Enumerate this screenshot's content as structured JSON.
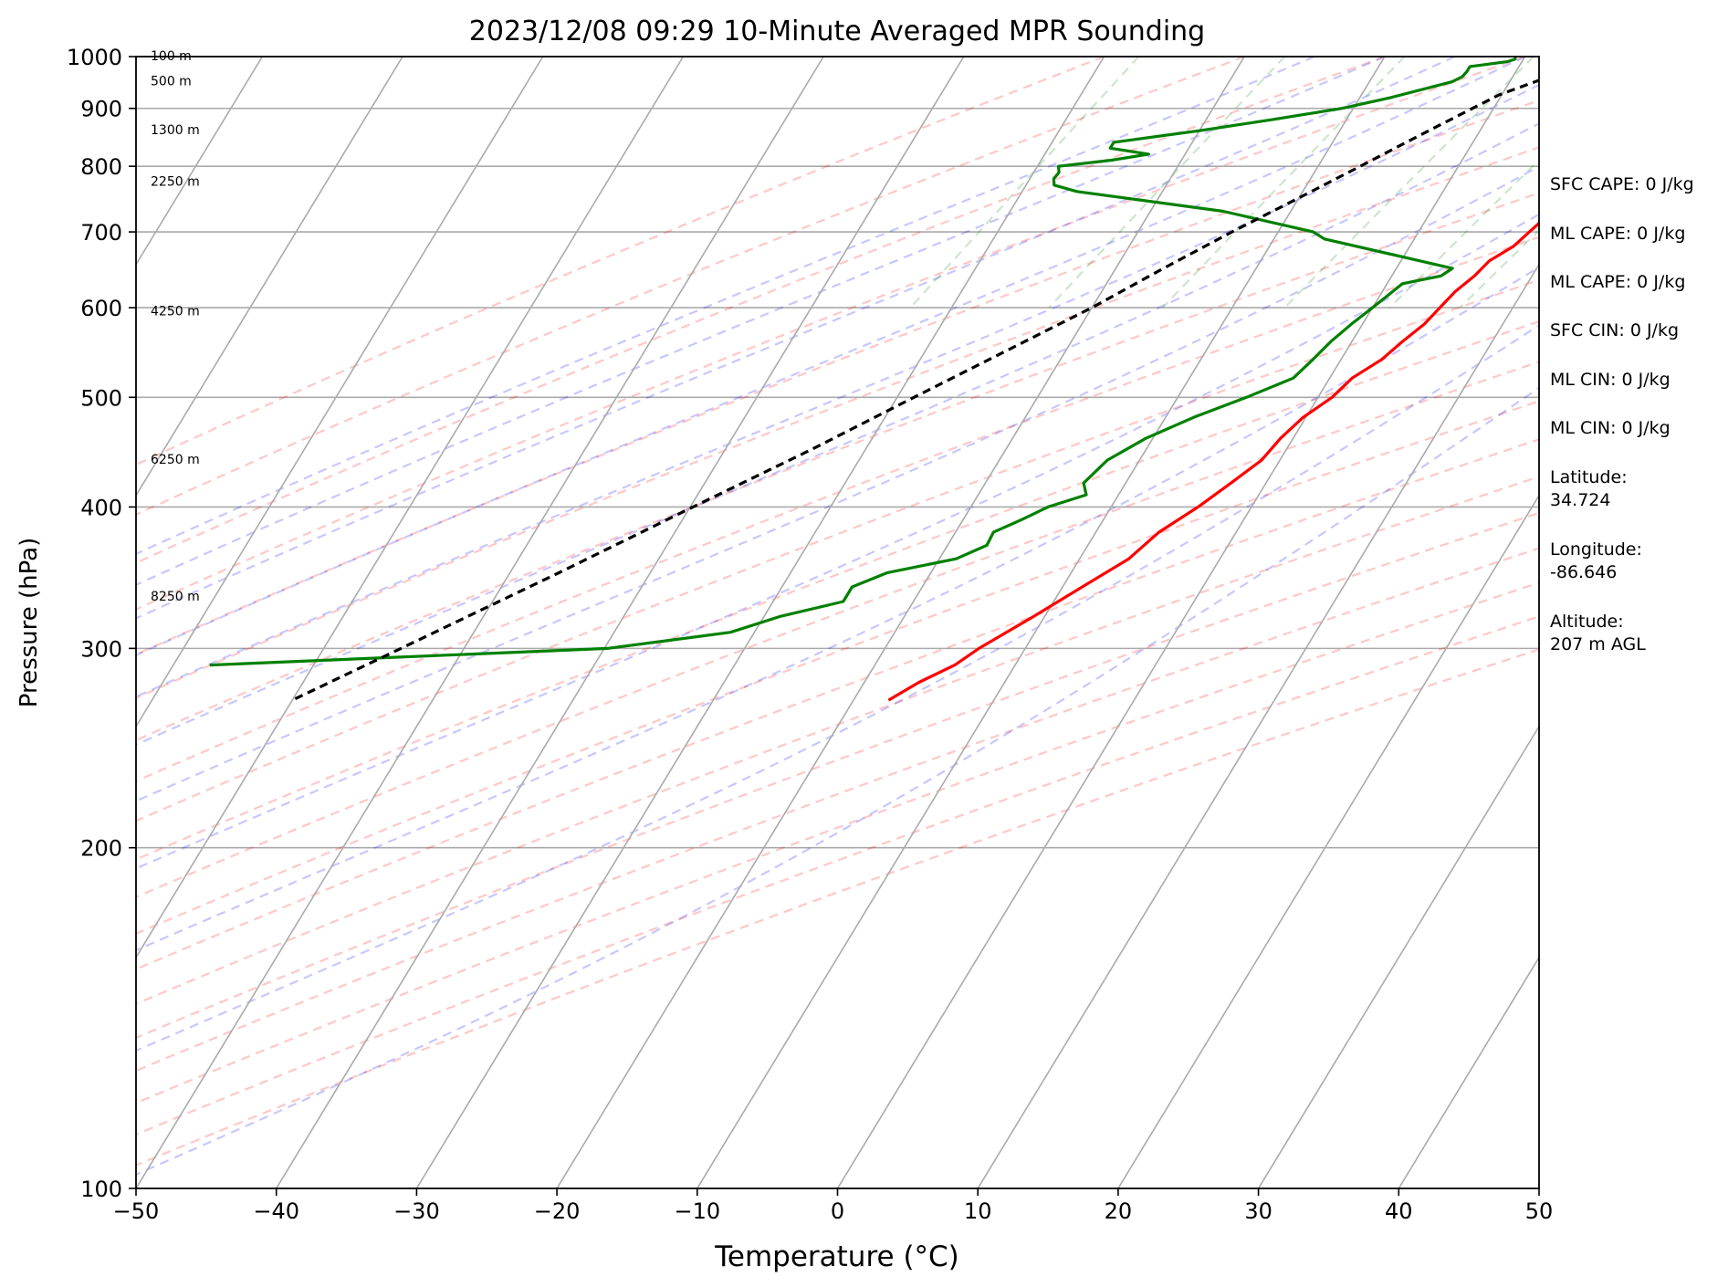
{
  "chart_data": {
    "type": "skew-t",
    "title": "2023/12/08 09:29 10-Minute Averaged MPR Sounding",
    "xlabel": "Temperature (°C)",
    "ylabel": "Pressure (hPa)",
    "xlim": [
      -50,
      50
    ],
    "ylim": [
      1000,
      100
    ],
    "yscale": "log",
    "x_ticks": [
      -50,
      -40,
      -30,
      -20,
      -10,
      0,
      10,
      20,
      30,
      40,
      50
    ],
    "x_tick_labels": [
      "−50",
      "−40",
      "−30",
      "−20",
      "−10",
      "0",
      "10",
      "20",
      "30",
      "40",
      "50"
    ],
    "y_ticks": [
      1000,
      900,
      800,
      700,
      600,
      500,
      400,
      300,
      200,
      100
    ],
    "y_tick_labels": [
      "1000",
      "900",
      "800",
      "700",
      "600",
      "500",
      "400",
      "300",
      "200",
      "100"
    ],
    "height_labels": [
      {
        "p": 1000,
        "text": "100 m"
      },
      {
        "p": 950,
        "text": "500 m"
      },
      {
        "p": 860,
        "text": "1300 m"
      },
      {
        "p": 775,
        "text": "2250 m"
      },
      {
        "p": 595,
        "text": "4250 m"
      },
      {
        "p": 440,
        "text": "6250 m"
      },
      {
        "p": 333,
        "text": "8250 m"
      }
    ],
    "series": [
      {
        "key": "temperature",
        "color": "#ff0000",
        "points": [
          [
            1000,
            7.5
          ],
          [
            990,
            8.1
          ],
          [
            980,
            8.3
          ],
          [
            970,
            7.4
          ],
          [
            960,
            6.5
          ],
          [
            950,
            6.4
          ],
          [
            940,
            6.9
          ],
          [
            920,
            7.2
          ],
          [
            910,
            7.7
          ],
          [
            900,
            7.8
          ],
          [
            880,
            8.5
          ],
          [
            860,
            9.5
          ],
          [
            840,
            9.8
          ],
          [
            820,
            10.1
          ],
          [
            800,
            10.0
          ],
          [
            780,
            10.0
          ],
          [
            760,
            9.3
          ],
          [
            740,
            9.0
          ],
          [
            720,
            8.4
          ],
          [
            700,
            7.9
          ],
          [
            680,
            7.4
          ],
          [
            660,
            6.3
          ],
          [
            640,
            5.9
          ],
          [
            620,
            5.2
          ],
          [
            600,
            4.8
          ],
          [
            580,
            4.4
          ],
          [
            560,
            3.6
          ],
          [
            540,
            2.9
          ],
          [
            520,
            1.6
          ],
          [
            500,
            1.0
          ],
          [
            480,
            -0.2
          ],
          [
            460,
            -0.9
          ],
          [
            440,
            -1.3
          ],
          [
            420,
            -2.5
          ],
          [
            400,
            -3.8
          ],
          [
            380,
            -5.5
          ],
          [
            360,
            -6.5
          ],
          [
            340,
            -8.6
          ],
          [
            320,
            -10.8
          ],
          [
            300,
            -13.3
          ],
          [
            290,
            -14.3
          ],
          [
            280,
            -16.1
          ],
          [
            270,
            -17.5
          ]
        ]
      },
      {
        "key": "dewpoint",
        "color": "#008000",
        "points": [
          [
            1000,
            -0.7
          ],
          [
            995,
            -0.6
          ],
          [
            990,
            -1.0
          ],
          [
            980,
            -3.5
          ],
          [
            970,
            -3.5
          ],
          [
            960,
            -3.6
          ],
          [
            950,
            -4.1
          ],
          [
            920,
            -7.8
          ],
          [
            900,
            -10.8
          ],
          [
            880,
            -15.2
          ],
          [
            860,
            -20.0
          ],
          [
            840,
            -25.6
          ],
          [
            830,
            -25.6
          ],
          [
            820,
            -22.6
          ],
          [
            810,
            -25.0
          ],
          [
            800,
            -28.5
          ],
          [
            790,
            -28.2
          ],
          [
            780,
            -28.3
          ],
          [
            770,
            -28.0
          ],
          [
            760,
            -26.1
          ],
          [
            730,
            -14.8
          ],
          [
            700,
            -7.5
          ],
          [
            690,
            -6.4
          ],
          [
            650,
            4.0
          ],
          [
            640,
            3.5
          ],
          [
            630,
            1.1
          ],
          [
            600,
            0.0
          ],
          [
            580,
            -0.8
          ],
          [
            560,
            -1.5
          ],
          [
            540,
            -2.0
          ],
          [
            520,
            -2.6
          ],
          [
            500,
            -5.1
          ],
          [
            480,
            -8.0
          ],
          [
            460,
            -10.5
          ],
          [
            440,
            -12.3
          ],
          [
            420,
            -13.0
          ],
          [
            410,
            -12.3
          ],
          [
            400,
            -14.5
          ],
          [
            390,
            -15.8
          ],
          [
            380,
            -17.3
          ],
          [
            370,
            -17.2
          ],
          [
            360,
            -18.8
          ],
          [
            350,
            -23.1
          ],
          [
            340,
            -25.0
          ],
          [
            330,
            -25.0
          ],
          [
            320,
            -28.9
          ],
          [
            310,
            -31.7
          ],
          [
            300,
            -39.8
          ],
          [
            290,
            -67.4
          ]
        ]
      },
      {
        "key": "parcel",
        "color": "#000000",
        "points": [
          [
            1000,
            5.7
          ],
          [
            975,
            3.8
          ],
          [
            950,
            1.8
          ],
          [
            925,
            -0.2
          ],
          [
            900,
            -1.5
          ],
          [
            850,
            -4.2
          ],
          [
            800,
            -7.0
          ],
          [
            750,
            -10.0
          ],
          [
            700,
            -13.3
          ],
          [
            650,
            -16.6
          ],
          [
            600,
            -20.0
          ],
          [
            550,
            -24.2
          ],
          [
            500,
            -28.8
          ],
          [
            450,
            -33.8
          ],
          [
            400,
            -39.8
          ],
          [
            350,
            -46.5
          ],
          [
            300,
            -54.5
          ],
          [
            270,
            -60.0
          ]
        ]
      }
    ],
    "dry_adiabats_theta_C": [
      -30,
      -20,
      -10,
      0,
      10,
      20,
      30,
      40,
      50,
      60,
      70,
      80,
      90,
      100,
      110,
      120,
      130,
      140,
      150
    ],
    "moist_adiabats_thetaw_C": [
      -15,
      -10,
      -5,
      0,
      5,
      10,
      15,
      20,
      25,
      30,
      35
    ],
    "mixing_ratio_lines_gkg": [
      0.4,
      1,
      2,
      4,
      7,
      10,
      16,
      24,
      32
    ]
  },
  "stats": [
    {
      "key": "sfc_cape",
      "text": "SFC CAPE: 0 J/kg"
    },
    {
      "key": "ml_cape",
      "text": "ML CAPE: 0 J/kg"
    },
    {
      "key": "ml_cape_2",
      "text": "ML CAPE: 0 J/kg"
    },
    {
      "key": "sfc_cin",
      "text": "SFC CIN: 0 J/kg"
    },
    {
      "key": "ml_cin",
      "text": "ML CIN: 0 J/kg"
    },
    {
      "key": "ml_cin_2",
      "text": "ML CIN: 0 J/kg"
    }
  ],
  "location": [
    {
      "key": "latitude",
      "label": "Latitude:",
      "value": "34.724"
    },
    {
      "key": "longitude",
      "label": "Longitude:",
      "value": "-86.646"
    },
    {
      "key": "altitude",
      "label": "Altitude:",
      "value": "207 m AGL"
    }
  ]
}
